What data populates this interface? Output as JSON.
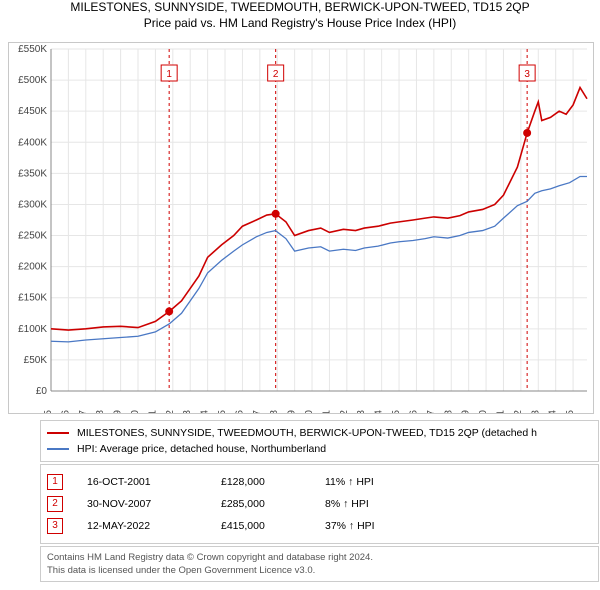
{
  "title": "MILESTONES, SUNNYSIDE, TWEEDMOUTH, BERWICK-UPON-TWEED, TD15 2QP",
  "subtitle": "Price paid vs. HM Land Registry's House Price Index (HPI)",
  "chart": {
    "type": "line",
    "background_color": "#ffffff",
    "grid_color": "#e6e6e6",
    "axis_color": "#888888",
    "ylim": [
      0,
      550000
    ],
    "ytick_step": 50000,
    "ytick_labels": [
      "£0",
      "£50K",
      "£100K",
      "£150K",
      "£200K",
      "£250K",
      "£300K",
      "£350K",
      "£400K",
      "£450K",
      "£500K",
      "£550K"
    ],
    "xlim": [
      1995,
      2025.8
    ],
    "xticks": [
      1995,
      1996,
      1997,
      1998,
      1999,
      2000,
      2001,
      2002,
      2003,
      2004,
      2005,
      2006,
      2007,
      2008,
      2009,
      2010,
      2011,
      2012,
      2013,
      2014,
      2015,
      2016,
      2017,
      2018,
      2019,
      2020,
      2021,
      2022,
      2023,
      2024,
      2025
    ],
    "series": [
      {
        "name": "property",
        "color": "#cc0000",
        "width": 1.6,
        "data": [
          [
            1995,
            100000
          ],
          [
            1996,
            98000
          ],
          [
            1997,
            100000
          ],
          [
            1998,
            103000
          ],
          [
            1999,
            104000
          ],
          [
            2000,
            102000
          ],
          [
            2001,
            112000
          ],
          [
            2001.8,
            128000
          ],
          [
            2002.5,
            145000
          ],
          [
            2003,
            165000
          ],
          [
            2003.5,
            185000
          ],
          [
            2004,
            215000
          ],
          [
            2004.8,
            235000
          ],
          [
            2005.5,
            250000
          ],
          [
            2006,
            265000
          ],
          [
            2006.8,
            275000
          ],
          [
            2007.4,
            283000
          ],
          [
            2007.9,
            285000
          ],
          [
            2008.5,
            272000
          ],
          [
            2009,
            250000
          ],
          [
            2009.8,
            258000
          ],
          [
            2010.5,
            262000
          ],
          [
            2011,
            255000
          ],
          [
            2011.8,
            260000
          ],
          [
            2012.5,
            258000
          ],
          [
            2013,
            262000
          ],
          [
            2013.8,
            265000
          ],
          [
            2014.5,
            270000
          ],
          [
            2015,
            272000
          ],
          [
            2015.8,
            275000
          ],
          [
            2016.5,
            278000
          ],
          [
            2017,
            280000
          ],
          [
            2017.8,
            278000
          ],
          [
            2018.5,
            282000
          ],
          [
            2019,
            288000
          ],
          [
            2019.8,
            292000
          ],
          [
            2020.5,
            300000
          ],
          [
            2021,
            315000
          ],
          [
            2021.8,
            360000
          ],
          [
            2022.36,
            415000
          ],
          [
            2022.8,
            450000
          ],
          [
            2023.0,
            465000
          ],
          [
            2023.2,
            435000
          ],
          [
            2023.7,
            440000
          ],
          [
            2024.2,
            450000
          ],
          [
            2024.6,
            445000
          ],
          [
            2025.0,
            460000
          ],
          [
            2025.4,
            488000
          ],
          [
            2025.8,
            470000
          ]
        ]
      },
      {
        "name": "hpi",
        "color": "#4a78c4",
        "width": 1.3,
        "data": [
          [
            1995,
            80000
          ],
          [
            1996,
            79000
          ],
          [
            1997,
            82000
          ],
          [
            1998,
            84000
          ],
          [
            1999,
            86000
          ],
          [
            2000,
            88000
          ],
          [
            2001,
            95000
          ],
          [
            2001.8,
            108000
          ],
          [
            2002.5,
            125000
          ],
          [
            2003,
            145000
          ],
          [
            2003.5,
            165000
          ],
          [
            2004,
            190000
          ],
          [
            2004.8,
            210000
          ],
          [
            2005.5,
            225000
          ],
          [
            2006,
            235000
          ],
          [
            2006.8,
            248000
          ],
          [
            2007.4,
            255000
          ],
          [
            2007.9,
            258000
          ],
          [
            2008.5,
            245000
          ],
          [
            2009,
            225000
          ],
          [
            2009.8,
            230000
          ],
          [
            2010.5,
            232000
          ],
          [
            2011,
            225000
          ],
          [
            2011.8,
            228000
          ],
          [
            2012.5,
            226000
          ],
          [
            2013,
            230000
          ],
          [
            2013.8,
            233000
          ],
          [
            2014.5,
            238000
          ],
          [
            2015,
            240000
          ],
          [
            2015.8,
            242000
          ],
          [
            2016.5,
            245000
          ],
          [
            2017,
            248000
          ],
          [
            2017.8,
            246000
          ],
          [
            2018.5,
            250000
          ],
          [
            2019,
            255000
          ],
          [
            2019.8,
            258000
          ],
          [
            2020.5,
            265000
          ],
          [
            2021,
            278000
          ],
          [
            2021.8,
            298000
          ],
          [
            2022.36,
            305000
          ],
          [
            2022.8,
            318000
          ],
          [
            2023.2,
            322000
          ],
          [
            2023.7,
            325000
          ],
          [
            2024.2,
            330000
          ],
          [
            2024.8,
            335000
          ],
          [
            2025.4,
            345000
          ],
          [
            2025.8,
            345000
          ]
        ]
      }
    ],
    "markers": [
      {
        "n": "1",
        "x": 2001.79,
        "y": 128000
      },
      {
        "n": "2",
        "x": 2007.91,
        "y": 285000
      },
      {
        "n": "3",
        "x": 2022.36,
        "y": 415000
      }
    ],
    "marker_color": "#d00000"
  },
  "legend": {
    "items": [
      {
        "color": "#cc0000",
        "label": "MILESTONES, SUNNYSIDE, TWEEDMOUTH, BERWICK-UPON-TWEED, TD15 2QP (detached h"
      },
      {
        "color": "#4a78c4",
        "label": "HPI: Average price, detached house, Northumberland"
      }
    ]
  },
  "sales": [
    {
      "n": "1",
      "date": "16-OCT-2001",
      "price": "£128,000",
      "hpi": "11% ↑ HPI"
    },
    {
      "n": "2",
      "date": "30-NOV-2007",
      "price": "£285,000",
      "hpi": "8% ↑ HPI"
    },
    {
      "n": "3",
      "date": "12-MAY-2022",
      "price": "£415,000",
      "hpi": "37% ↑ HPI"
    }
  ],
  "footer": {
    "line1": "Contains HM Land Registry data © Crown copyright and database right 2024.",
    "line2": "This data is licensed under the Open Government Licence v3.0."
  }
}
